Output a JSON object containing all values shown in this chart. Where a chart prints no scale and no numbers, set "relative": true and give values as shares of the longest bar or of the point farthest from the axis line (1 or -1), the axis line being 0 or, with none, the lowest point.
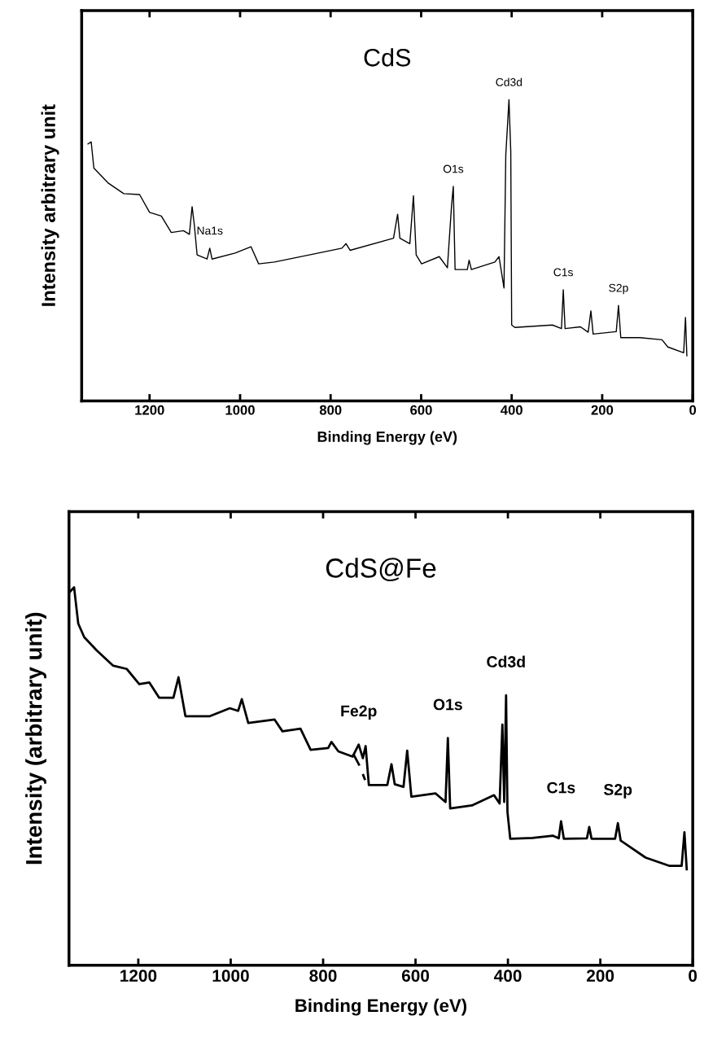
{
  "chart_data": [
    {
      "type": "line",
      "title": "CdS",
      "xlabel": "Binding Energy (eV)",
      "ylabel": "Intensity arbitrary unit",
      "relative": true,
      "xlim": [
        1350,
        0
      ],
      "xticks": [
        1200,
        1000,
        800,
        600,
        400,
        200,
        0
      ],
      "series": [
        {
          "color": "#000000",
          "x": [
            1336,
            1329,
            1323,
            1292,
            1257,
            1222,
            1200,
            1174,
            1152,
            1125,
            1112,
            1106,
            1101,
            1095,
            1073,
            1067,
            1062,
            1011,
            976,
            959,
            924,
            836,
            775,
            766,
            757,
            661,
            652,
            647,
            625,
            617,
            611,
            599,
            560,
            542,
            533,
            529,
            525,
            498,
            494,
            489,
            437,
            428,
            417,
            413,
            406,
            402,
            400,
            393,
            310,
            290,
            286,
            282,
            248,
            231,
            225,
            220,
            169,
            164,
            159,
            117,
            68,
            55,
            20,
            16,
            13
          ],
          "values": [
            0.853,
            0.86,
            0.773,
            0.724,
            0.688,
            0.685,
            0.626,
            0.614,
            0.559,
            0.565,
            0.553,
            0.645,
            0.583,
            0.485,
            0.471,
            0.507,
            0.471,
            0.491,
            0.512,
            0.455,
            0.461,
            0.488,
            0.507,
            0.522,
            0.5,
            0.54,
            0.62,
            0.54,
            0.522,
            0.681,
            0.485,
            0.455,
            0.479,
            0.442,
            0.645,
            0.712,
            0.436,
            0.436,
            0.467,
            0.436,
            0.461,
            0.479,
            0.375,
            0.816,
            1.0,
            0.828,
            0.252,
            0.244,
            0.252,
            0.24,
            0.369,
            0.24,
            0.246,
            0.228,
            0.299,
            0.222,
            0.23,
            0.317,
            0.21,
            0.21,
            0.203,
            0.179,
            0.16,
            0.277,
            0.15
          ]
        }
      ],
      "annotations": [
        {
          "text": "Na1s",
          "x": 1067,
          "y": 0.507
        },
        {
          "text": "O1s",
          "x": 529,
          "y": 0.712
        },
        {
          "text": "Cd3d",
          "x": 406,
          "y": 1.0
        },
        {
          "text": "C1s",
          "x": 286,
          "y": 0.369
        },
        {
          "text": "S2p",
          "x": 164,
          "y": 0.317
        }
      ]
    },
    {
      "type": "line",
      "title": "CdS@Fe",
      "xlabel": "Binding Energy (eV)",
      "ylabel": "Intensity (arbitrary unit)",
      "relative": true,
      "xlim": [
        1350,
        0
      ],
      "xticks": [
        1200,
        1000,
        800,
        600,
        400,
        200,
        0
      ],
      "series": [
        {
          "color": "#000000",
          "x": [
            1348,
            1339,
            1330,
            1317,
            1290,
            1255,
            1225,
            1198,
            1176,
            1155,
            1124,
            1113,
            1098,
            1045,
            1002,
            984,
            976,
            962,
            905,
            888,
            849,
            827,
            789,
            782,
            767,
            736,
            723,
            714,
            708,
            701,
            661,
            652,
            645,
            626,
            618,
            609,
            557,
            535,
            530,
            525,
            478,
            430,
            418,
            412,
            408,
            404,
            401,
            395,
            347,
            303,
            290,
            285,
            279,
            229,
            224,
            219,
            168,
            162,
            156,
            102,
            50,
            24,
            18,
            13
          ],
          "values": [
            0.988,
            1.0,
            0.904,
            0.868,
            0.833,
            0.793,
            0.784,
            0.744,
            0.748,
            0.708,
            0.708,
            0.762,
            0.659,
            0.659,
            0.68,
            0.673,
            0.704,
            0.641,
            0.65,
            0.619,
            0.626,
            0.57,
            0.575,
            0.591,
            0.566,
            0.552,
            0.584,
            0.548,
            0.58,
            0.477,
            0.477,
            0.532,
            0.479,
            0.472,
            0.568,
            0.446,
            0.455,
            0.432,
            0.601,
            0.415,
            0.423,
            0.45,
            0.428,
            0.637,
            0.432,
            0.714,
            0.406,
            0.335,
            0.337,
            0.343,
            0.336,
            0.381,
            0.335,
            0.336,
            0.366,
            0.335,
            0.335,
            0.376,
            0.33,
            0.285,
            0.263,
            0.263,
            0.352,
            0.254
          ]
        },
        {
          "color": "#000000",
          "line_style": "dashed",
          "x": [
            735,
            722,
            709
          ],
          "values": [
            0.56,
            0.53,
            0.49
          ]
        }
      ],
      "annotations": [
        {
          "text": "Fe2p",
          "x": 723,
          "y": 0.584
        },
        {
          "text": "O1s",
          "x": 530,
          "y": 0.601
        },
        {
          "text": "Cd3d",
          "x": 404,
          "y": 0.714
        },
        {
          "text": "C1s",
          "x": 285,
          "y": 0.381
        },
        {
          "text": "S2p",
          "x": 162,
          "y": 0.376
        }
      ]
    }
  ]
}
